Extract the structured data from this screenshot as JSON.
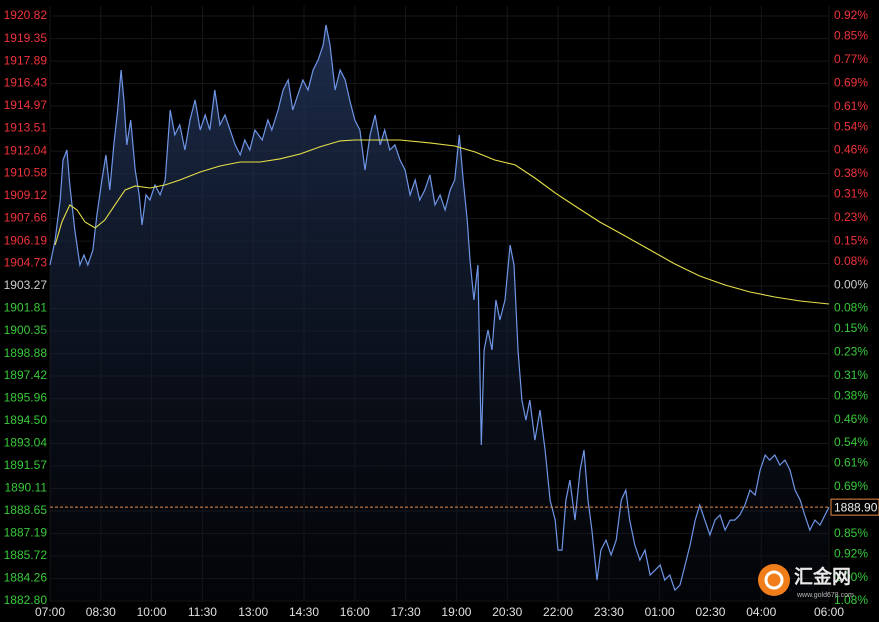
{
  "chart_data": {
    "type": "line",
    "xlim": [
      0,
      1380
    ],
    "xticks": [
      {
        "value": 0,
        "label": "07:00"
      },
      {
        "value": 90,
        "label": "08:30"
      },
      {
        "value": 180,
        "label": "10:00"
      },
      {
        "value": 270,
        "label": "11:30"
      },
      {
        "value": 360,
        "label": "13:00"
      },
      {
        "value": 450,
        "label": "14:30"
      },
      {
        "value": 540,
        "label": "16:00"
      },
      {
        "value": 630,
        "label": "17:30"
      },
      {
        "value": 720,
        "label": "19:00"
      },
      {
        "value": 810,
        "label": "20:30"
      },
      {
        "value": 900,
        "label": "22:00"
      },
      {
        "value": 990,
        "label": "23:30"
      },
      {
        "value": 1080,
        "label": "01:00"
      },
      {
        "value": 1170,
        "label": "02:30"
      },
      {
        "value": 1260,
        "label": "04:00"
      },
      {
        "value": 1380,
        "label": "06:00"
      }
    ],
    "ylim": [
      1882.8,
      1920.82
    ],
    "yticks": [
      {
        "value": 1920.82,
        "label": "1920.82"
      },
      {
        "value": 1919.35,
        "label": "1919.35"
      },
      {
        "value": 1917.89,
        "label": "1917.89"
      },
      {
        "value": 1916.43,
        "label": "1916.43"
      },
      {
        "value": 1914.97,
        "label": "1914.97"
      },
      {
        "value": 1913.51,
        "label": "1913.51"
      },
      {
        "value": 1912.04,
        "label": "1912.04"
      },
      {
        "value": 1910.58,
        "label": "1910.58"
      },
      {
        "value": 1909.12,
        "label": "1909.12"
      },
      {
        "value": 1907.66,
        "label": "1907.66"
      },
      {
        "value": 1906.19,
        "label": "1906.19"
      },
      {
        "value": 1904.73,
        "label": "1904.73"
      },
      {
        "value": 1903.27,
        "label": "1903.27"
      },
      {
        "value": 1901.81,
        "label": "1901.81"
      },
      {
        "value": 1900.35,
        "label": "1900.35"
      },
      {
        "value": 1898.88,
        "label": "1898.88"
      },
      {
        "value": 1897.42,
        "label": "1897.42"
      },
      {
        "value": 1895.96,
        "label": "1895.96"
      },
      {
        "value": 1894.5,
        "label": "1894.50"
      },
      {
        "value": 1893.04,
        "label": "1893.04"
      },
      {
        "value": 1891.57,
        "label": "1891.57"
      },
      {
        "value": 1890.11,
        "label": "1890.11"
      },
      {
        "value": 1888.65,
        "label": "1888.65"
      },
      {
        "value": 1887.19,
        "label": "1887.19"
      },
      {
        "value": 1885.72,
        "label": "1885.72"
      },
      {
        "value": 1884.26,
        "label": "1884.26"
      },
      {
        "value": 1882.8,
        "label": "1882.80"
      }
    ],
    "y2lim": [
      -1.08,
      0.92
    ],
    "y2ticks": [
      {
        "value": 0.92,
        "label": "0.92%"
      },
      {
        "value": 0.85,
        "label": "0.85%"
      },
      {
        "value": 0.77,
        "label": "0.77%"
      },
      {
        "value": 0.69,
        "label": "0.69%"
      },
      {
        "value": 0.61,
        "label": "0.61%"
      },
      {
        "value": 0.54,
        "label": "0.54%"
      },
      {
        "value": 0.46,
        "label": "0.46%"
      },
      {
        "value": 0.38,
        "label": "0.38%"
      },
      {
        "value": 0.31,
        "label": "0.31%"
      },
      {
        "value": 0.23,
        "label": "0.23%"
      },
      {
        "value": 0.15,
        "label": "0.15%"
      },
      {
        "value": 0.08,
        "label": "0.08%"
      },
      {
        "value": 0,
        "label": "0.00%"
      },
      {
        "value": -0.08,
        "label": "0.08%"
      },
      {
        "value": -0.15,
        "label": "0.15%"
      },
      {
        "value": -0.23,
        "label": "0.23%"
      },
      {
        "value": -0.31,
        "label": "0.31%"
      },
      {
        "value": -0.38,
        "label": "0.38%"
      },
      {
        "value": -0.46,
        "label": "0.46%"
      },
      {
        "value": -0.54,
        "label": "0.54%"
      },
      {
        "value": -0.61,
        "label": "0.61%"
      },
      {
        "value": -0.69,
        "label": "0.69%"
      },
      {
        "value": -0.77,
        "label": "0.77%"
      },
      {
        "value": -0.85,
        "label": "0.85%"
      },
      {
        "value": -0.92,
        "label": "0.92%"
      },
      {
        "value": -1,
        "label": "1.00%"
      },
      {
        "value": -1.08,
        "label": "1.08%"
      }
    ],
    "base_value": 1903.27,
    "up_color": "#f0343c",
    "down_color": "#39c93a",
    "base_color": "#cfcfcf",
    "grid": true,
    "series": [
      {
        "color": "#6f95e6",
        "area": true,
        "x": [
          0,
          9,
          18,
          23,
          30,
          35,
          44,
          53,
          60,
          67,
          76,
          83,
          92,
          99,
          106,
          113,
          120,
          126,
          131,
          136,
          143,
          151,
          158,
          163,
          170,
          177,
          186,
          195,
          204,
          213,
          221,
          230,
          239,
          248,
          257,
          266,
          275,
          283,
          292,
          301,
          310,
          319,
          328,
          337,
          345,
          354,
          363,
          376,
          386,
          393,
          404,
          413,
          422,
          430,
          439,
          448,
          457,
          466,
          475,
          484,
          489,
          496,
          505,
          514,
          523,
          531,
          540,
          549,
          558,
          567,
          576,
          585,
          593,
          602,
          611,
          620,
          629,
          638,
          647,
          655,
          664,
          673,
          682,
          691,
          700,
          709,
          717,
          725,
          732,
          739,
          744,
          751,
          758,
          764,
          769,
          776,
          783,
          790,
          797,
          806,
          815,
          822,
          829,
          836,
          843,
          850,
          859,
          868,
          877,
          886,
          895,
          900,
          907,
          914,
          921,
          930,
          939,
          946,
          953,
          960,
          969,
          976,
          985,
          994,
          1003,
          1012,
          1020,
          1027,
          1036,
          1045,
          1054,
          1063,
          1072,
          1081,
          1089,
          1098,
          1107,
          1116,
          1125,
          1134,
          1143,
          1151,
          1160,
          1169,
          1178,
          1187,
          1196,
          1205,
          1213,
          1222,
          1231,
          1240,
          1249,
          1258,
          1267,
          1275,
          1284,
          1293,
          1302,
          1311,
          1320,
          1329,
          1337,
          1346,
          1355,
          1364,
          1373,
          1380
        ],
        "values": [
          1904.64,
          1906.26,
          1908.86,
          1911.46,
          1912.11,
          1909.84,
          1906.91,
          1904.64,
          1905.29,
          1904.64,
          1905.61,
          1907.89,
          1910.16,
          1911.79,
          1909.51,
          1912.44,
          1914.71,
          1917.31,
          1915.36,
          1912.44,
          1914.06,
          1910.81,
          1909.19,
          1907.24,
          1909.19,
          1908.86,
          1909.84,
          1909.19,
          1910.16,
          1914.71,
          1913.09,
          1913.74,
          1912.11,
          1914.06,
          1915.36,
          1913.41,
          1914.39,
          1913.41,
          1916.01,
          1913.74,
          1914.39,
          1913.41,
          1912.44,
          1911.79,
          1912.76,
          1912.11,
          1913.41,
          1912.76,
          1914.06,
          1913.41,
          1914.71,
          1916.01,
          1916.66,
          1914.71,
          1915.69,
          1916.66,
          1916.01,
          1917.31,
          1917.96,
          1918.94,
          1920.24,
          1918.94,
          1916.01,
          1917.31,
          1916.66,
          1915.36,
          1914.06,
          1913.41,
          1910.81,
          1913.09,
          1914.39,
          1912.44,
          1913.41,
          1912.11,
          1912.44,
          1911.46,
          1910.81,
          1909.19,
          1910.16,
          1908.86,
          1909.51,
          1910.49,
          1908.54,
          1909.19,
          1908.21,
          1909.51,
          1910.16,
          1913.09,
          1910.16,
          1907.56,
          1904.96,
          1902.36,
          1904.64,
          1892.94,
          1899.11,
          1900.41,
          1899.11,
          1902.36,
          1901.06,
          1902.36,
          1905.94,
          1904.64,
          1899.11,
          1895.86,
          1894.56,
          1895.86,
          1893.26,
          1895.21,
          1892.61,
          1889.36,
          1888.06,
          1886.11,
          1886.11,
          1889.36,
          1890.66,
          1888.06,
          1891.31,
          1892.61,
          1889.36,
          1887.41,
          1884.16,
          1886.11,
          1886.76,
          1885.79,
          1886.76,
          1889.36,
          1890.01,
          1888.06,
          1886.44,
          1885.46,
          1886.11,
          1884.49,
          1884.81,
          1885.14,
          1884.16,
          1884.49,
          1883.51,
          1883.84,
          1885.14,
          1886.44,
          1888.06,
          1889.04,
          1888.06,
          1887.09,
          1888.06,
          1888.39,
          1887.41,
          1888.06,
          1888.06,
          1888.39,
          1889.04,
          1890.01,
          1889.69,
          1891.31,
          1892.29,
          1891.96,
          1892.29,
          1891.64,
          1891.96,
          1891.31,
          1890.01,
          1889.36,
          1888.39,
          1887.41,
          1888.06,
          1887.74,
          1888.39,
          1888.9
        ]
      },
      {
        "color": "#e6e04a",
        "area": false,
        "x": [
          9,
          21,
          35,
          48,
          62,
          80,
          97,
          115,
          133,
          151,
          177,
          204,
          230,
          266,
          301,
          337,
          372,
          407,
          443,
          478,
          514,
          540,
          567,
          620,
          673,
          717,
          753,
          788,
          824,
          859,
          895,
          930,
          974,
          1019,
          1063,
          1107,
          1151,
          1196,
          1240,
          1284,
          1329,
          1380
        ],
        "values": [
          1905.94,
          1907.43,
          1908.54,
          1908.21,
          1907.43,
          1907.04,
          1907.56,
          1908.54,
          1909.51,
          1909.77,
          1909.64,
          1909.84,
          1910.16,
          1910.68,
          1911.07,
          1911.33,
          1911.33,
          1911.53,
          1911.85,
          1912.31,
          1912.7,
          1912.76,
          1912.76,
          1912.76,
          1912.57,
          1912.37,
          1911.98,
          1911.46,
          1911.14,
          1910.29,
          1909.32,
          1908.47,
          1907.43,
          1906.52,
          1905.61,
          1904.7,
          1903.92,
          1903.34,
          1902.88,
          1902.56,
          1902.3,
          1902.1
        ]
      }
    ],
    "last_price": 1888.9,
    "last_price_label": "1888.90",
    "last_price_color": "#e88a4a"
  },
  "watermark": {
    "text": "汇金网",
    "url": "www.gold678.com"
  }
}
